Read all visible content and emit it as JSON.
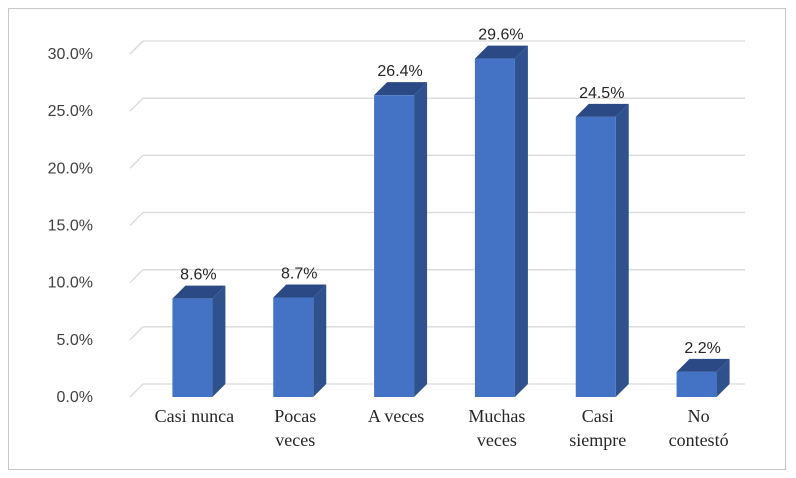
{
  "chart_data": {
    "type": "bar",
    "title": "",
    "xlabel": "",
    "ylabel": "",
    "categories": [
      [
        "Casi nunca"
      ],
      [
        "Pocas",
        "veces"
      ],
      [
        "A veces"
      ],
      [
        "Muchas",
        "veces"
      ],
      [
        "Casi",
        "siempre"
      ],
      [
        "No",
        "contestó"
      ]
    ],
    "values": [
      8.6,
      8.7,
      26.4,
      29.6,
      24.5,
      2.2
    ],
    "data_labels": [
      "8.6%",
      "8.7%",
      "26.4%",
      "29.6%",
      "24.5%",
      "2.2%"
    ],
    "yticks": [
      0,
      5,
      10,
      15,
      20,
      25,
      30
    ],
    "ytick_labels": [
      "0.0%",
      "5.0%",
      "10.0%",
      "15.0%",
      "20.0%",
      "25.0%",
      "30.0%"
    ],
    "ylim": [
      0,
      30
    ],
    "grid": true,
    "legend": "none",
    "style": "3d-column",
    "colors": {
      "bar_front": "#4472c4",
      "bar_side": "#2f528f",
      "bar_top": "#2b4a85",
      "grid": "#d9d9d9"
    }
  }
}
